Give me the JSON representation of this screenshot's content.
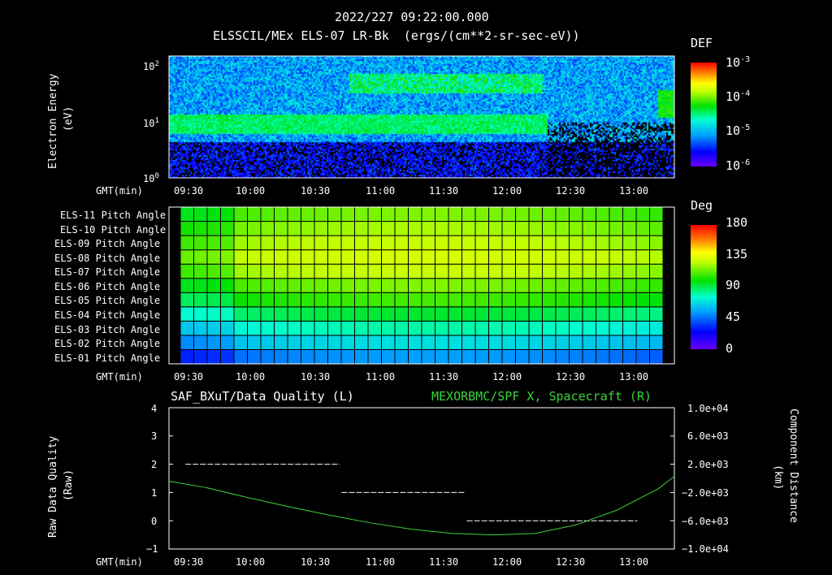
{
  "header": {
    "timestamp": "2022/227 09:22:00.000",
    "subtitle": "ELSSCIL/MEx ELS-07 LR-Bk  (ergs/(cm**2-sr-sec-eV))"
  },
  "time_axis": {
    "label": "GMT(min)",
    "ticks": [
      "09:30",
      "10:00",
      "10:30",
      "11:00",
      "11:30",
      "12:00",
      "12:30",
      "13:00"
    ],
    "tick_minutes": [
      570,
      600,
      630,
      660,
      690,
      720,
      750,
      780
    ]
  },
  "colors": {
    "background": "#000000",
    "line_series": "#3cd23c",
    "quality_series": "#ffffff",
    "colorbar": [
      "#6a00ff",
      "#0000ff",
      "#00a0ff",
      "#00ffd0",
      "#00e000",
      "#c0ff00",
      "#ffff00",
      "#ff8000",
      "#ff0000"
    ]
  },
  "chart_data": [
    {
      "type": "heatmap",
      "name_on_chart": "ELS-07 LR-Bk",
      "ylabel": "Electron Energy",
      "yunit": "(eV)",
      "yscale": "log",
      "ylim": [
        1,
        150
      ],
      "yticks": [
        {
          "base": "10",
          "exp": "0",
          "value": 1
        },
        {
          "base": "10",
          "exp": "1",
          "value": 10
        },
        {
          "base": "10",
          "exp": "2",
          "value": 100
        }
      ],
      "xlim_minutes": [
        562,
        808
      ],
      "colorbar": {
        "label": "DEF",
        "scale": "log",
        "ticks": [
          {
            "base": "10",
            "exp": "-3",
            "value": 0.001
          },
          {
            "base": "10",
            "exp": "-4",
            "value": 0.0001
          },
          {
            "base": "10",
            "exp": "-5",
            "value": 1e-05
          },
          {
            "base": "10",
            "exp": "-6",
            "value": 1e-06
          }
        ]
      }
    },
    {
      "type": "heatmap",
      "rows": [
        "ELS-11 Pitch Angle",
        "ELS-10 Pitch Angle",
        "ELS-09 Pitch Angle",
        "ELS-08 Pitch Angle",
        "ELS-07 Pitch Angle",
        "ELS-06 Pitch Angle",
        "ELS-05 Pitch Angle",
        "ELS-04 Pitch Angle",
        "ELS-03 Pitch Angle",
        "ELS-02 Pitch Angle",
        "ELS-01 Pitch Angle"
      ],
      "row_values_deg": [
        95,
        100,
        105,
        110,
        105,
        95,
        88,
        75,
        62,
        50,
        35
      ],
      "columns": 36,
      "xlim_minutes": [
        562,
        808
      ],
      "colorbar": {
        "label": "Deg",
        "range": [
          0,
          180
        ],
        "ticks": [
          "180",
          "135",
          "90",
          "45",
          "0"
        ]
      }
    },
    {
      "type": "line",
      "left_title": "SAF_BXuT/Data Quality (L)",
      "right_title": "MEXORBMC/SPF X, Spacecraft (R)",
      "ylabel": "Raw Data Quality",
      "yunit": "(Raw)",
      "ylim": [
        -1,
        4
      ],
      "yticks": [
        "4",
        "3",
        "2",
        "1",
        "0",
        "−1"
      ],
      "y2label": "Component Distance",
      "y2unit": "(km)",
      "y2lim": [
        -10000,
        10000
      ],
      "y2ticks": [
        "1.0e+04",
        "6.0e+03",
        "2.0e+03",
        "−2.0e+03",
        "−6.0e+03",
        "−1.0e+04"
      ],
      "xlim_minutes": [
        562,
        808
      ],
      "series": [
        {
          "name": "SAF_BXuT/Data Quality (L)",
          "axis": "left",
          "style": "dashed",
          "segments": [
            {
              "x": [
                570,
                645
              ],
              "y": 2
            },
            {
              "x": [
                646,
                706
              ],
              "y": 1
            },
            {
              "x": [
                707,
                790
              ],
              "y": 0
            }
          ]
        },
        {
          "name": "MEXORBMC/SPF X, Spacecraft (R)",
          "axis": "right",
          "x_minutes": [
            562,
            580,
            600,
            620,
            640,
            660,
            680,
            700,
            720,
            740,
            760,
            780,
            800,
            808
          ],
          "y_km": [
            -400,
            -1300,
            -2700,
            -4000,
            -5200,
            -6300,
            -7200,
            -7800,
            -8000,
            -7800,
            -6600,
            -4500,
            -1500,
            300
          ]
        }
      ]
    }
  ]
}
